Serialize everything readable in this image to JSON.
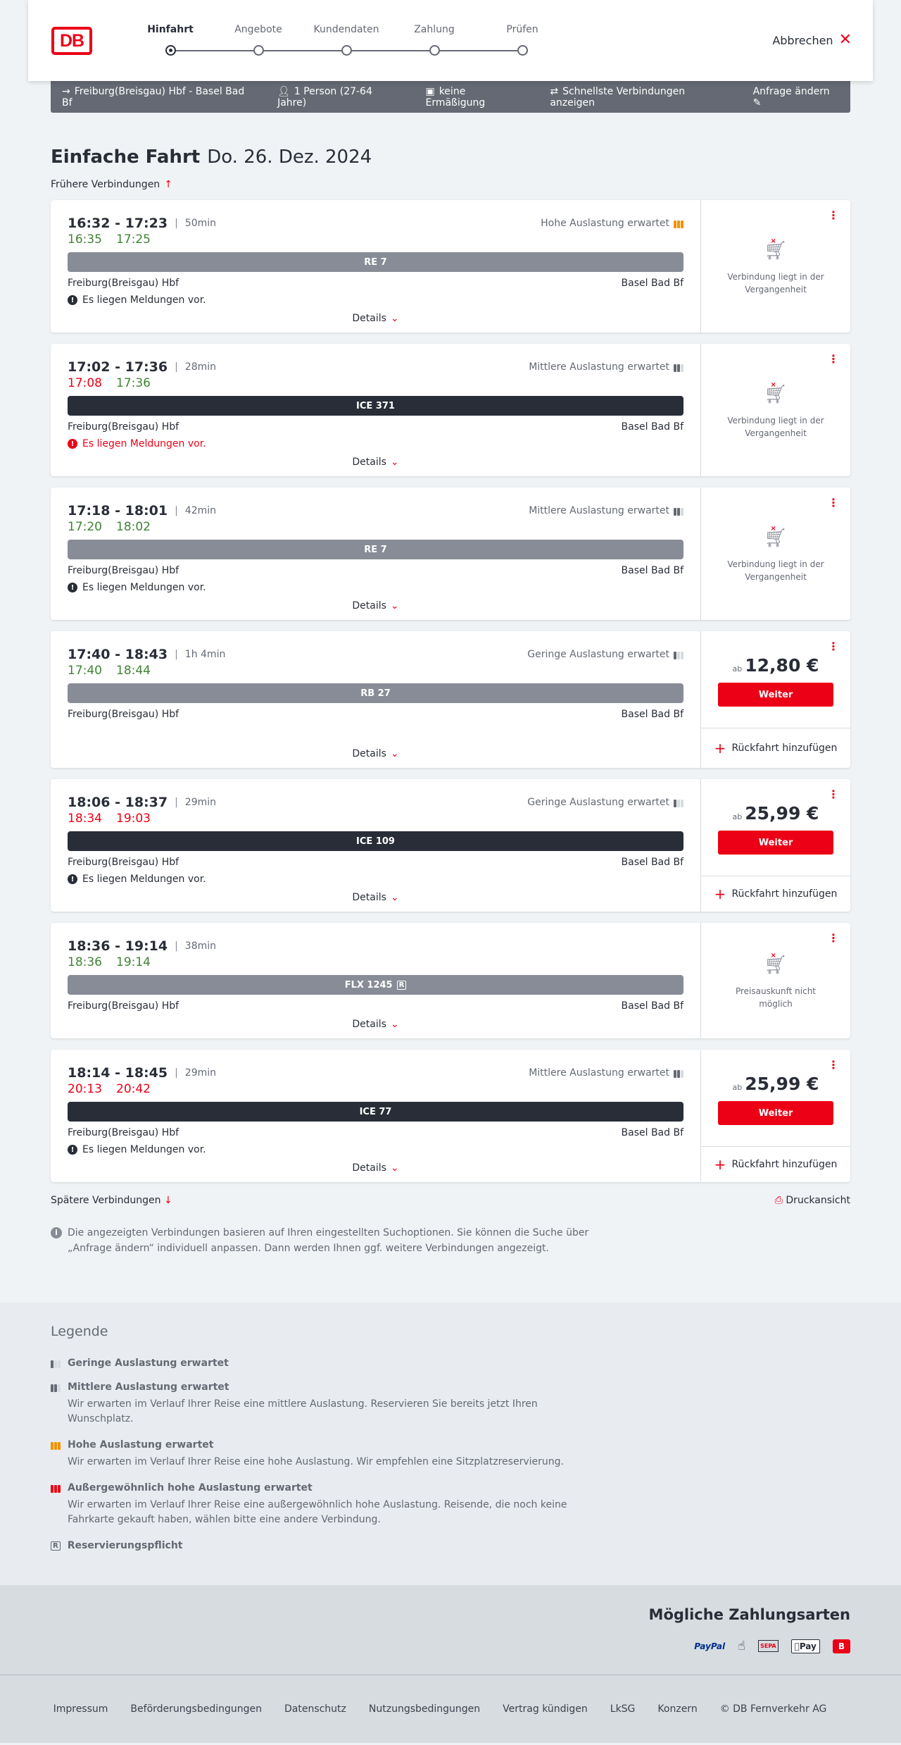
{
  "header": {
    "logo": "DB",
    "steps": [
      "Hinfahrt",
      "Angebote",
      "Kundendaten",
      "Zahlung",
      "Prüfen"
    ],
    "active_step": 0,
    "cancel": "Abbrechen"
  },
  "summary": {
    "route": "Freiburg(Breisgau) Hbf - Basel Bad Bf",
    "passengers": "1 Person (27-64 Jahre)",
    "discount": "keine Ermäßigung",
    "filter": "Schnellste Verbindungen anzeigen",
    "change": "Anfrage ändern"
  },
  "page": {
    "title": "Einfache Fahrt",
    "date": "Do. 26. Dez. 2024",
    "earlier": "Frühere Verbindungen",
    "later": "Spätere Verbindungen",
    "print": "Druckansicht",
    "info": "Die angezeigten Verbindungen basieren auf Ihren eingestellten Suchoptionen. Sie können die Suche über „Anfrage ändern“ individuell anpassen. Dann werden Ihnen ggf. weitere Verbindungen angezeigt."
  },
  "labels": {
    "details": "Details",
    "weiter": "Weiter",
    "return": "Rückfahrt hinzufügen",
    "ab": "ab"
  },
  "connections": [
    {
      "times": "16:32 - 17:23",
      "duration": "50min",
      "load": "Hohe Auslastung erwartet",
      "load_level": "high",
      "rt_dep": "16:35",
      "rt_dep_status": "ok",
      "rt_arr": "17:25",
      "rt_arr_status": "ok",
      "train": "RE 7",
      "train_type": "regional",
      "from": "Freiburg(Breisgau) Hbf",
      "to": "Basel Bad Bf",
      "message": "Es liegen Meldungen vor.",
      "message_severity": "info",
      "status": "Verbindung liegt in der Vergangenheit"
    },
    {
      "times": "17:02 - 17:36",
      "duration": "28min",
      "load": "Mittlere Auslastung erwartet",
      "load_level": "medium",
      "rt_dep": "17:08",
      "rt_dep_status": "late",
      "rt_arr": "17:36",
      "rt_arr_status": "ok",
      "train": "ICE 371",
      "train_type": "ice",
      "from": "Freiburg(Breisgau) Hbf",
      "to": "Basel Bad Bf",
      "message": "Es liegen Meldungen vor.",
      "message_severity": "warning",
      "status": "Verbindung liegt in der Vergangenheit"
    },
    {
      "times": "17:18 - 18:01",
      "duration": "42min",
      "load": "Mittlere Auslastung erwartet",
      "load_level": "medium",
      "rt_dep": "17:20",
      "rt_dep_status": "ok",
      "rt_arr": "18:02",
      "rt_arr_status": "ok",
      "train": "RE 7",
      "train_type": "regional",
      "from": "Freiburg(Breisgau) Hbf",
      "to": "Basel Bad Bf",
      "message": "Es liegen Meldungen vor.",
      "message_severity": "info",
      "status": "Verbindung liegt in der Vergangenheit"
    },
    {
      "times": "17:40 - 18:43",
      "duration": "1h 4min",
      "load": "Geringe Auslastung erwartet",
      "load_level": "low",
      "rt_dep": "17:40",
      "rt_dep_status": "ok",
      "rt_arr": "18:44",
      "rt_arr_status": "ok",
      "train": "RB 27",
      "train_type": "regional",
      "from": "Freiburg(Breisgau) Hbf",
      "to": "Basel Bad Bf",
      "price": "12,80 €"
    },
    {
      "times": "18:06 - 18:37",
      "duration": "29min",
      "load": "Geringe Auslastung erwartet",
      "load_level": "low",
      "rt_dep": "18:34",
      "rt_dep_status": "late",
      "rt_arr": "19:03",
      "rt_arr_status": "late",
      "train": "ICE 109",
      "train_type": "ice",
      "from": "Freiburg(Breisgau) Hbf",
      "to": "Basel Bad Bf",
      "message": "Es liegen Meldungen vor.",
      "message_severity": "info",
      "price": "25,99 €"
    },
    {
      "times": "18:36 - 19:14",
      "duration": "38min",
      "rt_dep": "18:36",
      "rt_dep_status": "ok",
      "rt_arr": "19:14",
      "rt_arr_status": "ok",
      "train": "FLX 1245",
      "train_type": "regional",
      "reservation_required": true,
      "from": "Freiburg(Breisgau) Hbf",
      "to": "Basel Bad Bf",
      "status": "Preisauskunft nicht möglich"
    },
    {
      "times": "18:14 - 18:45",
      "duration": "29min",
      "load": "Mittlere Auslastung erwartet",
      "load_level": "medium",
      "rt_dep": "20:13",
      "rt_dep_status": "late",
      "rt_arr": "20:42",
      "rt_arr_status": "late",
      "train": "ICE 77",
      "train_type": "ice",
      "from": "Freiburg(Breisgau) Hbf",
      "to": "Basel Bad Bf",
      "message": "Es liegen Meldungen vor.",
      "message_severity": "info",
      "price": "25,99 €"
    }
  ],
  "legend": {
    "title": "Legende",
    "items": [
      {
        "title": "Geringe Auslastung erwartet",
        "level": "low"
      },
      {
        "title": "Mittlere Auslastung erwartet",
        "level": "medium",
        "desc": "Wir erwarten im Verlauf Ihrer Reise eine mittlere Auslastung. Reservieren Sie bereits jetzt Ihren Wunschplatz."
      },
      {
        "title": "Hohe Auslastung erwartet",
        "level": "high",
        "desc": "Wir erwarten im Verlauf Ihrer Reise eine hohe Auslastung. Wir empfehlen eine Sitzplatzreservierung."
      },
      {
        "title": "Außergewöhnlich hohe Auslastung erwartet",
        "level": "extreme",
        "desc": "Wir erwarten im Verlauf Ihrer Reise eine außergewöhnlich hohe Auslastung. Reisende, die noch keine Fahrkarte gekauft haben, wählen bitte eine andere Verbindung."
      },
      {
        "title": "Reservierungspflicht",
        "level": "reservation"
      }
    ]
  },
  "payment": {
    "title": "Mögliche Zahlungsarten",
    "methods": [
      "PayPal",
      "credit-card-icon",
      "SEPA",
      "Pay",
      "bahn-bonus-icon"
    ]
  },
  "footer": {
    "links": [
      "Impressum",
      "Beförderungsbedingungen",
      "Datenschutz",
      "Nutzungsbedingungen",
      "Vertrag kündigen",
      "LkSG",
      "Konzern",
      "© DB Fernverkehr AG"
    ]
  },
  "colors": {
    "accent": "#ec0016",
    "ontime": "#408335",
    "high_load": "#f39200",
    "summary_bg": "#646973",
    "ice": "#282d37",
    "regional": "#878c96"
  }
}
